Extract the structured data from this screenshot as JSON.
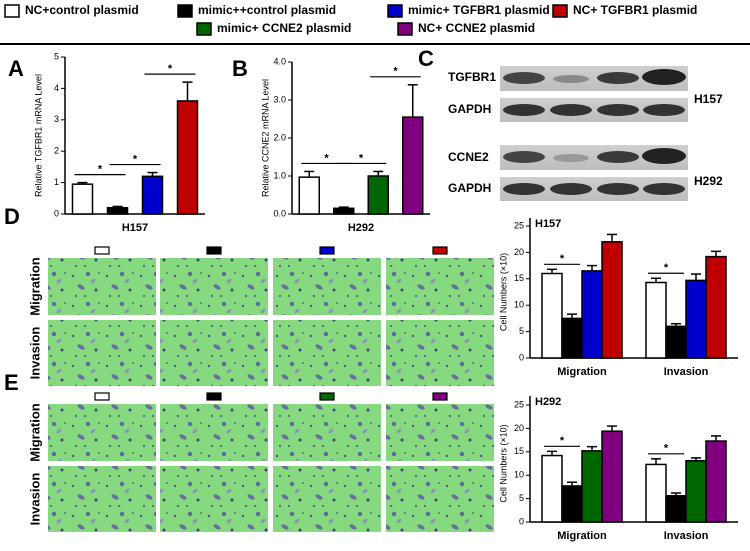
{
  "legend": [
    {
      "name": "NC+control plasmid",
      "color": "#ffffff"
    },
    {
      "name": "mimic++control plasmid",
      "color": "#000000"
    },
    {
      "name": "mimic+ TGFBR1 plasmid",
      "color": "#0000cc"
    },
    {
      "name": "NC+ TGFBR1 plasmid",
      "color": "#c00000"
    },
    {
      "name": "mimic+ CCNE2 plasmid",
      "color": "#006600"
    },
    {
      "name": "NC+ CCNE2 plasmid",
      "color": "#800080"
    }
  ],
  "panel_labels": [
    "A",
    "B",
    "C",
    "D",
    "E"
  ],
  "blot": {
    "proteins": [
      "TGFBR1",
      "GAPDH",
      "CCNE2",
      "GAPDH"
    ],
    "cell_lines": [
      "H157",
      "H292"
    ]
  },
  "micrograph_rows": [
    "Migration",
    "Invasion",
    "Migration",
    "Invasion"
  ],
  "chart_data": [
    {
      "type": "bar",
      "y_label": "Relative TGFBR1 mRNA Level",
      "x_label": "H157",
      "values": [
        0.95,
        0.2,
        1.2,
        3.6
      ],
      "errors": [
        0.05,
        0.04,
        0.12,
        0.6
      ],
      "colors": [
        "#ffffff",
        "#000000",
        "#0000cc",
        "#c00000"
      ],
      "ylim": [
        0,
        5
      ],
      "yticks": [
        0,
        1,
        2,
        3,
        4,
        5
      ],
      "significance_labels": [
        "*",
        "*",
        "*"
      ]
    },
    {
      "type": "bar",
      "y_label": "Relative CCNE2 mRNA Level",
      "x_label": "H292",
      "values": [
        0.97,
        0.15,
        1.0,
        2.55
      ],
      "errors": [
        0.15,
        0.03,
        0.12,
        0.85
      ],
      "colors": [
        "#ffffff",
        "#000000",
        "#006600",
        "#800080"
      ],
      "ylim": [
        0,
        4
      ],
      "yticks": [
        {
          "value": 0,
          "label": "0.0"
        },
        {
          "value": 1,
          "label": "1.0"
        },
        {
          "value": 2,
          "label": "2.0"
        },
        {
          "value": 3,
          "label": "3.0"
        },
        {
          "value": 4,
          "label": "4.0"
        }
      ],
      "significance_labels": [
        "*",
        "*",
        "*"
      ]
    },
    {
      "type": "grouped_bar",
      "title": "H157",
      "y_label": "Cell Numbers (×10)",
      "categories": [
        "Migration",
        "Invasion"
      ],
      "series": [
        {
          "color": "#ffffff",
          "values": [
            16,
            14.3
          ],
          "errors": [
            0.8,
            0.8
          ]
        },
        {
          "color": "#000000",
          "values": [
            7.5,
            6
          ],
          "errors": [
            0.8,
            0.5
          ]
        },
        {
          "color": "#0000cc",
          "values": [
            16.5,
            14.7
          ],
          "errors": [
            1.0,
            1.2
          ]
        },
        {
          "color": "#c00000",
          "values": [
            22,
            19.2
          ],
          "errors": [
            1.4,
            1.0
          ]
        }
      ],
      "ylim": [
        0,
        25
      ],
      "yticks": [
        0,
        5,
        10,
        15,
        20,
        25
      ],
      "significance_labels": [
        "*",
        "*"
      ]
    },
    {
      "type": "grouped_bar",
      "title": "H292",
      "y_label": "Cell Numbers (×10)",
      "categories": [
        "Migration",
        "Invasion"
      ],
      "series": [
        {
          "color": "#ffffff",
          "values": [
            14.2,
            12.3
          ],
          "errors": [
            0.9,
            1.2
          ]
        },
        {
          "color": "#000000",
          "values": [
            7.7,
            5.6
          ],
          "errors": [
            0.8,
            0.6
          ]
        },
        {
          "color": "#006600",
          "values": [
            15.2,
            13.1
          ],
          "errors": [
            0.9,
            0.6
          ]
        },
        {
          "color": "#800080",
          "values": [
            19.4,
            17.3
          ],
          "errors": [
            1.1,
            1.1
          ]
        }
      ],
      "ylim": [
        0,
        25
      ],
      "yticks": [
        0,
        5,
        10,
        15,
        20,
        25
      ],
      "significance_labels": [
        "*",
        "*"
      ]
    }
  ]
}
